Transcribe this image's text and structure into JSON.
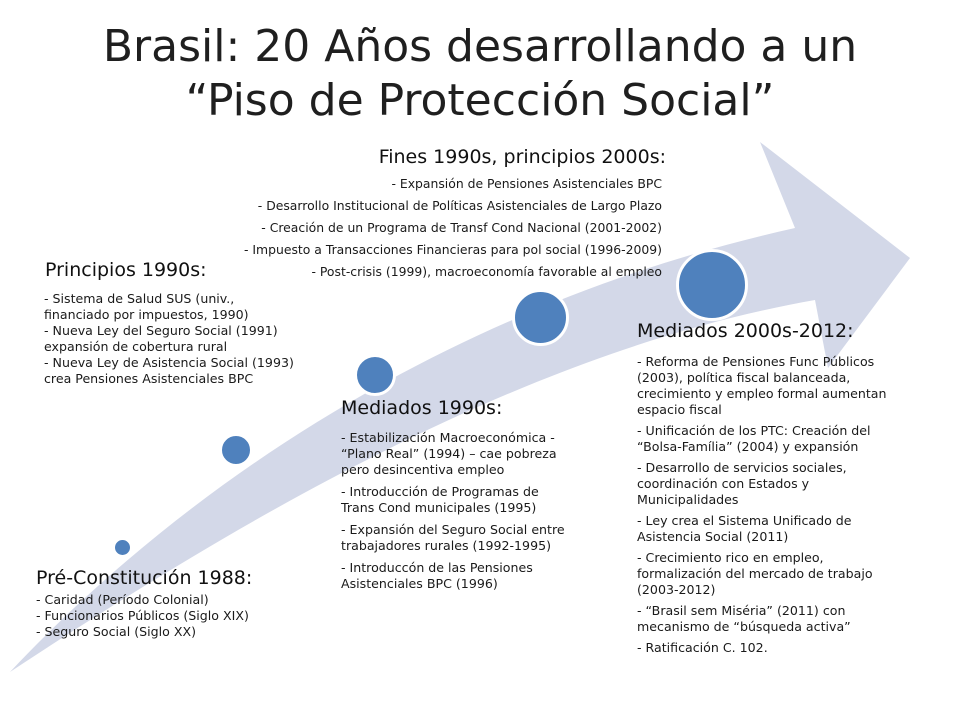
{
  "title": {
    "line1": "Brasil: 20 Años desarrollando a un",
    "line2": "“Piso de Protección Social”"
  },
  "colors": {
    "arrow": "#d3d8e8",
    "node": "#4f81bd"
  },
  "stages": {
    "pre1988": {
      "title": "Pré-Constitución 1988:",
      "items": [
        "- Caridad (Período Colonial)",
        "- Funcionarios Públicos (Siglo XIX)",
        "- Seguro Social (Siglo XX)"
      ]
    },
    "early1990s": {
      "title": "Principios 1990s:",
      "items": [
        "- Sistema de Salud SUS (univ., financiado por impuestos, 1990)",
        "- Nueva Ley del Seguro Social (1991) expansión de cobertura rural",
        "- Nueva Ley de Asistencia Social (1993) crea Pensiones Asistenciales BPC"
      ]
    },
    "mid1990s": {
      "title": "Mediados 1990s:",
      "items": [
        "- Estabilización Macroeconómica - “Plano Real” (1994) – cae pobreza pero desincentiva empleo",
        "- Introducción de Programas de Trans Cond municipales (1995)",
        "- Expansión del Seguro Social entre trabajadores rurales (1992-1995)",
        "- Introduccón de las Pensiones Asistenciales BPC (1996)"
      ]
    },
    "late1990s": {
      "title": "Fines 1990s, principios 2000s:",
      "items": [
        "- Expansión de Pensiones Asistenciales BPC",
        "- Desarrollo Institucional de Políticas Asistenciales de Largo Plazo",
        "- Creación de un Programa de Transf Cond Nacional (2001-2002)",
        "- Impuesto a Transacciones Financieras para pol social (1996-2009)",
        "- Post-crisis (1999), macroeconomía favorable al empleo"
      ]
    },
    "mid2000s": {
      "title": "Mediados 2000s-2012:",
      "items": [
        "- Reforma de Pensiones Func Públicos (2003), política fiscal balanceada, crecimiento y empleo formal aumentan espacio fiscal",
        "- Unificación de los PTC: Creación del “Bolsa-Família” (2004) y expansión",
        "- Desarrollo de servicios sociales, coordinación con Estados y Municipalidades",
        "- Ley crea el Sistema Unificado de Asistencia Social (2011)",
        "- Crecimiento rico en empleo, formalización del mercado de trabajo (2003-2012)",
        "- “Brasil sem Miséria” (2011) con mecanismo de “búsqueda activa”",
        "- Ratificación C. 102."
      ]
    }
  }
}
